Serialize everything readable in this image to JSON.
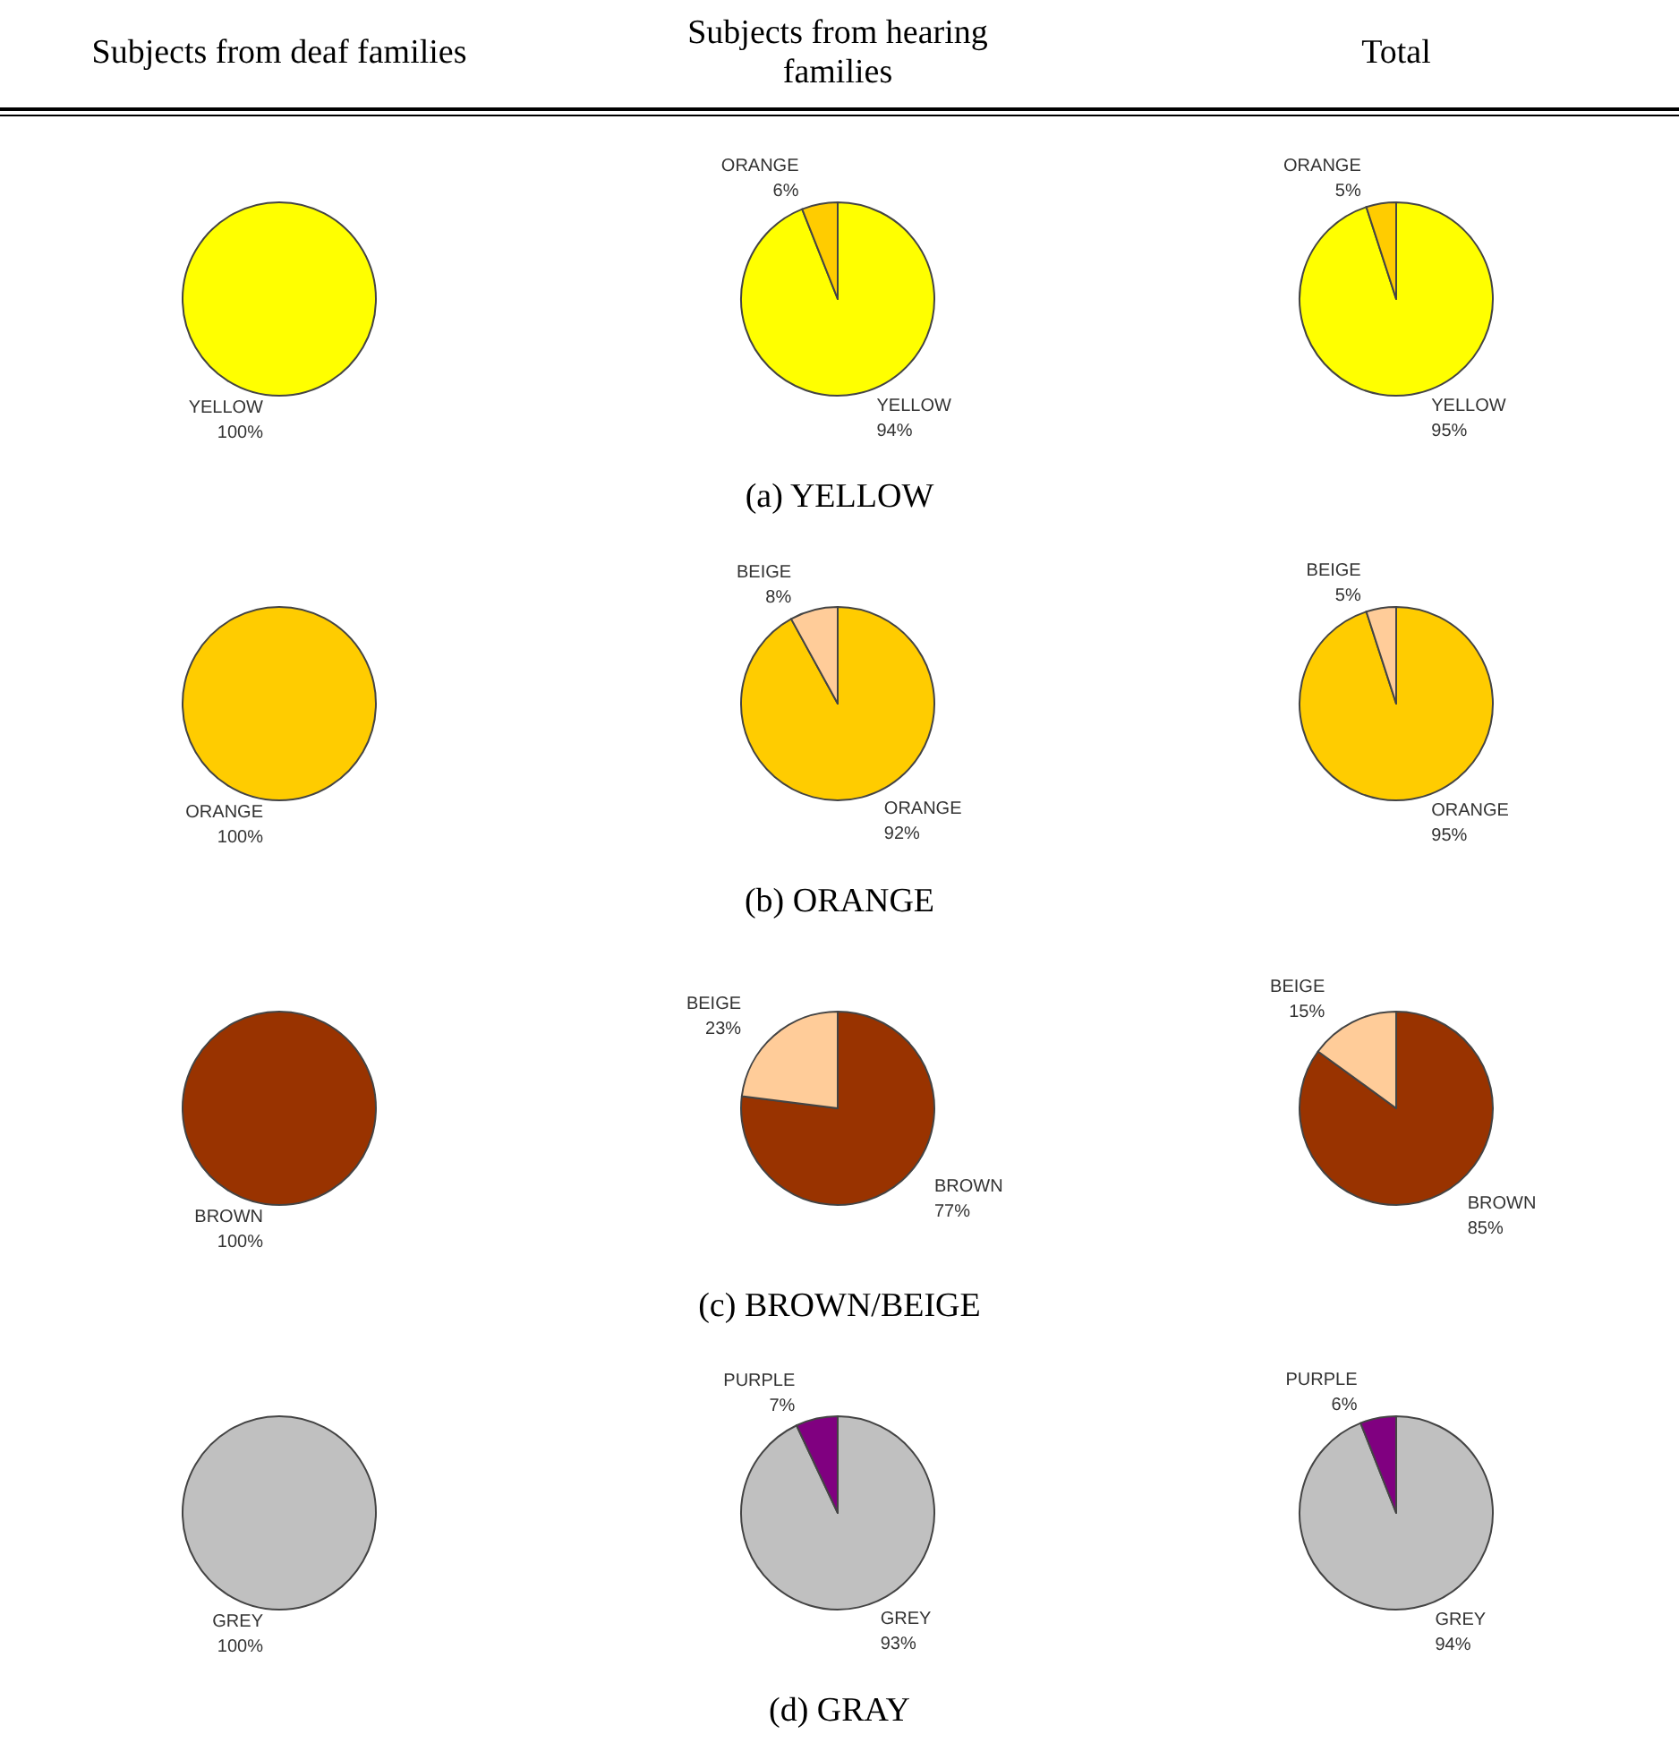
{
  "chart_data": [
    {
      "type": "pie",
      "title": "Subjects from deaf families",
      "categories": [
        "YELLOW"
      ],
      "values": [
        100
      ],
      "colors": [
        "#ffff00"
      ],
      "value_labels": [
        "100%"
      ]
    },
    {
      "type": "pie",
      "title": "Subjects from hearing families",
      "categories": [
        "YELLOW",
        "ORANGE"
      ],
      "values": [
        94,
        6
      ],
      "colors": [
        "#ffff00",
        "#ffcc00"
      ],
      "value_labels": [
        "94%",
        "6%"
      ],
      "annotations": [
        "(a) YELLOW"
      ]
    },
    {
      "type": "pie",
      "title": "Total",
      "categories": [
        "YELLOW",
        "ORANGE"
      ],
      "values": [
        95,
        5
      ],
      "colors": [
        "#ffff00",
        "#ffcc00"
      ],
      "value_labels": [
        "95%",
        "5%"
      ]
    },
    {
      "type": "pie",
      "categories": [
        "ORANGE"
      ],
      "values": [
        100
      ],
      "colors": [
        "#ffcc00"
      ],
      "value_labels": [
        "100%"
      ]
    },
    {
      "type": "pie",
      "categories": [
        "ORANGE",
        "BEIGE"
      ],
      "values": [
        92,
        8
      ],
      "colors": [
        "#ffcc00",
        "#ffcc99"
      ],
      "value_labels": [
        "92%",
        "8%"
      ],
      "annotations": [
        "(b) ORANGE"
      ]
    },
    {
      "type": "pie",
      "categories": [
        "ORANGE",
        "BEIGE"
      ],
      "values": [
        95,
        5
      ],
      "colors": [
        "#ffcc00",
        "#ffcc99"
      ],
      "value_labels": [
        "95%",
        "5%"
      ]
    },
    {
      "type": "pie",
      "categories": [
        "BROWN"
      ],
      "values": [
        100
      ],
      "colors": [
        "#993300"
      ],
      "value_labels": [
        "100%"
      ]
    },
    {
      "type": "pie",
      "categories": [
        "BROWN",
        "BEIGE"
      ],
      "values": [
        77,
        23
      ],
      "colors": [
        "#993300",
        "#ffcc99"
      ],
      "value_labels": [
        "77%",
        "23%"
      ],
      "annotations": [
        "(c) BROWN/BEIGE"
      ]
    },
    {
      "type": "pie",
      "categories": [
        "BROWN",
        "BEIGE"
      ],
      "values": [
        85,
        15
      ],
      "colors": [
        "#993300",
        "#ffcc99"
      ],
      "value_labels": [
        "85%",
        "15%"
      ]
    },
    {
      "type": "pie",
      "categories": [
        "GREY"
      ],
      "values": [
        100
      ],
      "colors": [
        "#c0c0c0"
      ],
      "value_labels": [
        "100%"
      ]
    },
    {
      "type": "pie",
      "categories": [
        "GREY",
        "PURPLE"
      ],
      "values": [
        93,
        7
      ],
      "colors": [
        "#c0c0c0",
        "#800080"
      ],
      "value_labels": [
        "93%",
        "7%"
      ],
      "annotations": [
        "(d) GRAY"
      ]
    },
    {
      "type": "pie",
      "categories": [
        "GREY",
        "PURPLE"
      ],
      "values": [
        94,
        6
      ],
      "colors": [
        "#c0c0c0",
        "#800080"
      ],
      "value_labels": [
        "94%",
        "6%"
      ]
    }
  ]
}
